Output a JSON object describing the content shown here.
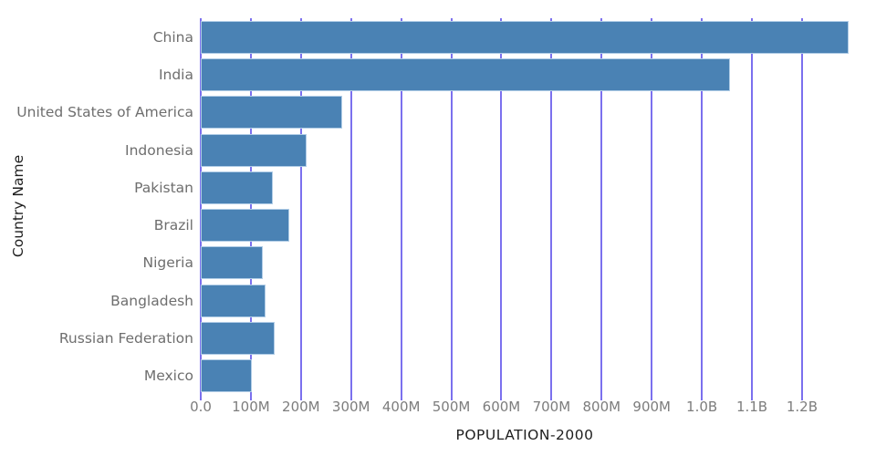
{
  "figure": {
    "background_color": "#ffffff",
    "bar_color": "#4a82b4",
    "bar_edge_color": "#b0cce6",
    "gridline_color": "#7b70ee",
    "category_label_color": "#6e6e6e",
    "tick_label_color": "#7d7d7d",
    "axis_title_color": "#1e1e1e"
  },
  "chart_data": {
    "type": "bar",
    "orientation": "horizontal",
    "title": "",
    "xlabel": "POPULATION-2000",
    "ylabel": "Country Name",
    "categories": [
      "China",
      "India",
      "United States of America",
      "Indonesia",
      "Pakistan",
      "Brazil",
      "Nigeria",
      "Bangladesh",
      "Russian Federation",
      "Mexico"
    ],
    "values_millions": [
      1293,
      1057,
      282,
      212,
      143,
      176,
      123,
      129,
      147,
      102
    ],
    "xlim_millions": [
      0,
      1293
    ],
    "x_tick_step_millions": 100,
    "x_ticks": [
      {
        "value_millions": 0,
        "label": "0.0"
      },
      {
        "value_millions": 100,
        "label": "100M"
      },
      {
        "value_millions": 200,
        "label": "200M"
      },
      {
        "value_millions": 300,
        "label": "300M"
      },
      {
        "value_millions": 400,
        "label": "400M"
      },
      {
        "value_millions": 500,
        "label": "500M"
      },
      {
        "value_millions": 600,
        "label": "600M"
      },
      {
        "value_millions": 700,
        "label": "700M"
      },
      {
        "value_millions": 800,
        "label": "800M"
      },
      {
        "value_millions": 900,
        "label": "900M"
      },
      {
        "value_millions": 1000,
        "label": "1.0B"
      },
      {
        "value_millions": 1100,
        "label": "1.1B"
      },
      {
        "value_millions": 1200,
        "label": "1.2B"
      }
    ],
    "grid": "vertical",
    "legend": "none"
  }
}
